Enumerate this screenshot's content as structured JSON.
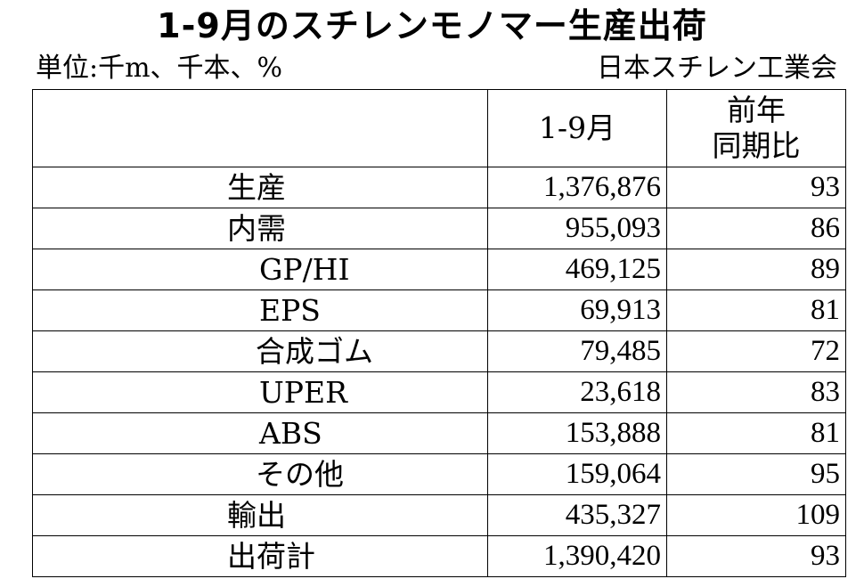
{
  "title": "1-9月のスチレンモノマー生産出荷",
  "unit_note": "単位:千m、千本、%",
  "source": "日本スチレン工業会",
  "table": {
    "headers": [
      "",
      "1-9月",
      "前年同期比"
    ],
    "header_yoy_line1": "前年",
    "header_yoy_line2": "同期比",
    "rows": [
      {
        "label": "生産",
        "value": "1,376,876",
        "yoy": "93"
      },
      {
        "label": "内需",
        "value": "955,093",
        "yoy": "86"
      },
      {
        "label": "GP/HI",
        "value": "469,125",
        "yoy": "89"
      },
      {
        "label": "EPS",
        "value": "69,913",
        "yoy": "81"
      },
      {
        "label": "合成ゴム",
        "value": "79,485",
        "yoy": "72"
      },
      {
        "label": "UPER",
        "value": "23,618",
        "yoy": "83"
      },
      {
        "label": "ABS",
        "value": "153,888",
        "yoy": "81"
      },
      {
        "label": "その他",
        "value": "159,064",
        "yoy": "95"
      },
      {
        "label": "輸出",
        "value": "435,327",
        "yoy": "109"
      },
      {
        "label": "出荷計",
        "value": "1,390,420",
        "yoy": "93"
      }
    ]
  }
}
